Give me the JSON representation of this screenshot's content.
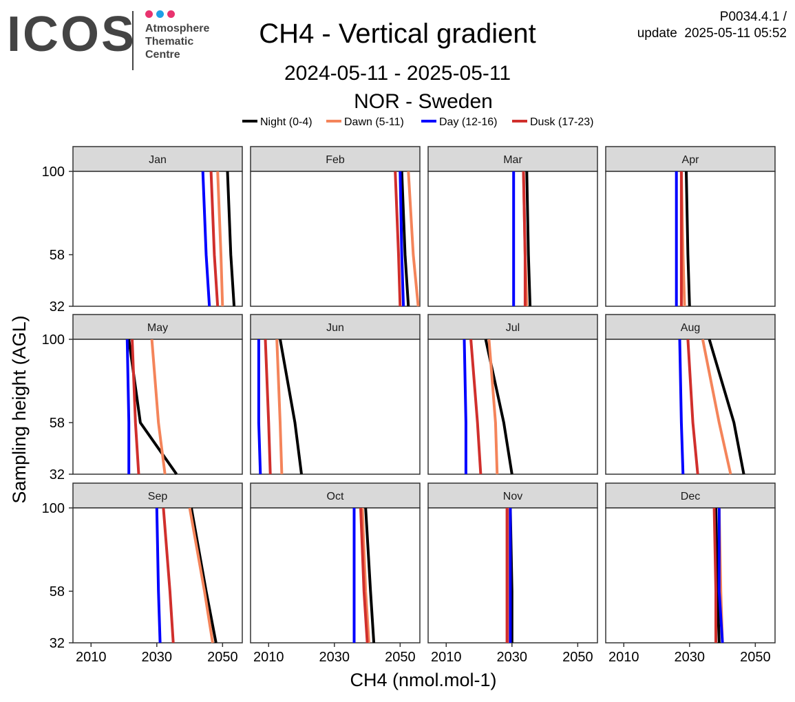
{
  "logo": {
    "text": "ICOS",
    "subtitle_lines": [
      "Atmosphere",
      "Thematic",
      "Centre"
    ],
    "dot_colors": [
      "#e8336e",
      "#1fa0e6",
      "#e8336e"
    ]
  },
  "header": {
    "product_id": "P0034.4.1 /",
    "update_label": "update",
    "update_time": "2025-05-11 05:52"
  },
  "chart_data": {
    "type": "line",
    "title": "CH4 - Vertical gradient",
    "subtitle": "2024-05-11 - 2025-05-11",
    "station": "NOR - Sweden",
    "xlabel": "CH4 (nmol.mol-1)",
    "ylabel": "Sampling height (AGL)",
    "xlim": [
      2004.5,
      2056
    ],
    "x_ticks": [
      2010,
      2030,
      2050
    ],
    "y_heights": [
      32,
      58,
      100
    ],
    "y_ticks": [
      32,
      58,
      100
    ],
    "legend_position": "top",
    "series_styles": [
      {
        "name": "Night (0-4)",
        "color": "#000000"
      },
      {
        "name": "Dawn (5-11)",
        "color": "#f4845a"
      },
      {
        "name": "Day (12-16)",
        "color": "#0000ff"
      },
      {
        "name": "Dusk (17-23)",
        "color": "#d02f2c"
      }
    ],
    "panels": [
      {
        "month": "Jan",
        "series": [
          [
            2053.5,
            2052.5,
            2051.5
          ],
          [
            2050,
            2049.5,
            2048.5
          ],
          [
            2046,
            2045,
            2044
          ],
          [
            2048.5,
            2047.5,
            2046.5
          ]
        ]
      },
      {
        "month": "Feb",
        "series": [
          [
            2052.5,
            2051.5,
            2050.5
          ],
          [
            2055.5,
            2054,
            2052.5
          ],
          [
            2051,
            2050.5,
            2050
          ],
          [
            2050,
            2049.5,
            2048.5
          ]
        ]
      },
      {
        "month": "Mar",
        "series": [
          [
            2035.5,
            2035,
            2034.5
          ],
          [
            2034.5,
            2034,
            2033.5
          ],
          [
            2030.5,
            2030.5,
            2030.5
          ],
          [
            2034,
            2034,
            2033.5
          ]
        ]
      },
      {
        "month": "Apr",
        "series": [
          [
            2030,
            2029.5,
            2029
          ],
          [
            2028.5,
            2028,
            2027.5
          ],
          [
            2026,
            2026,
            2026
          ],
          [
            2027.5,
            2027.5,
            2027.5
          ]
        ]
      },
      {
        "month": "May",
        "series": [
          [
            2036,
            2025,
            2021.5
          ],
          [
            2032.5,
            2030.5,
            2028.5
          ],
          [
            2021.5,
            2021.5,
            2021
          ],
          [
            2024.5,
            2023.5,
            2022.5
          ]
        ]
      },
      {
        "month": "Jun",
        "series": [
          [
            2020,
            2018,
            2013.5
          ],
          [
            2014,
            2013.5,
            2012.5
          ],
          [
            2007.5,
            2007,
            2007
          ],
          [
            2010.5,
            2010,
            2009
          ]
        ]
      },
      {
        "month": "Jul",
        "series": [
          [
            2030,
            2027.5,
            2022
          ],
          [
            2025.5,
            2025,
            2023
          ],
          [
            2016,
            2016,
            2015.5
          ],
          [
            2020.5,
            2019.5,
            2017.5
          ]
        ]
      },
      {
        "month": "Aug",
        "series": [
          [
            2046.5,
            2043.5,
            2036
          ],
          [
            2042.5,
            2039,
            2034
          ],
          [
            2028,
            2027.5,
            2027
          ],
          [
            2032.5,
            2031,
            2029.5
          ]
        ]
      },
      {
        "month": "Sep",
        "series": [
          [
            2048,
            2045,
            2040.5
          ],
          [
            2047,
            2044.5,
            2040
          ],
          [
            2031,
            2030.5,
            2030
          ],
          [
            2035,
            2034,
            2032
          ]
        ]
      },
      {
        "month": "Oct",
        "series": [
          [
            2042,
            2041,
            2039.5
          ],
          [
            2040.5,
            2039.5,
            2038.5
          ],
          [
            2036,
            2036,
            2036
          ],
          [
            2040,
            2039,
            2038
          ]
        ]
      },
      {
        "month": "Nov",
        "series": [
          [
            2030,
            2030,
            2029.5
          ],
          [
            2029,
            2029,
            2029
          ],
          [
            2029.5,
            2029.5,
            2029.5
          ],
          [
            2028.5,
            2028.5,
            2028.5
          ]
        ]
      },
      {
        "month": "Dec",
        "series": [
          [
            2039,
            2038.5,
            2038
          ],
          [
            2040,
            2039.5,
            2039
          ],
          [
            2040,
            2039,
            2039
          ],
          [
            2038,
            2038,
            2037.5
          ]
        ]
      }
    ]
  }
}
